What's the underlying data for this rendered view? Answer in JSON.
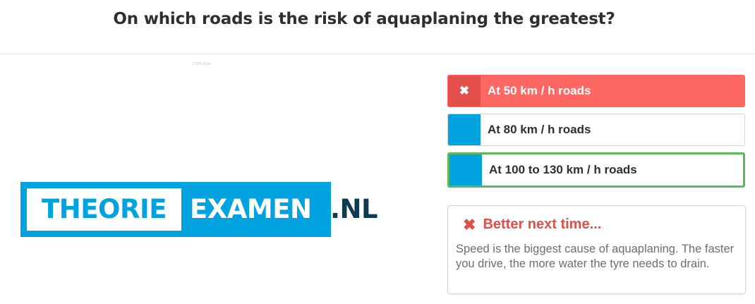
{
  "question": "On which roads is the risk of aquaplaning the greatest?",
  "image_caption": "27399-Date",
  "logo": {
    "part1": "THEORIE",
    "part2": "EXAMEN",
    "part3": ".NL",
    "brand_color": "#00a3e0",
    "dark_color": "#0d3b4f"
  },
  "answers": [
    {
      "label": "At 50 km / h roads",
      "state": "wrong-selected",
      "marker": "✖"
    },
    {
      "label": "At 80 km / h roads",
      "state": "neutral",
      "marker": ""
    },
    {
      "label": "At 100 to 130 km / h roads",
      "state": "correct",
      "marker": ""
    }
  ],
  "feedback": {
    "icon": "close-icon",
    "title": "Better next time...",
    "text": "Speed is the biggest cause of aquaplaning. The faster you drive, the more water the tyre needs to drain."
  },
  "colors": {
    "wrong": "#ff6862",
    "correct_border": "#5cb85c",
    "accent": "#00a3e0"
  }
}
